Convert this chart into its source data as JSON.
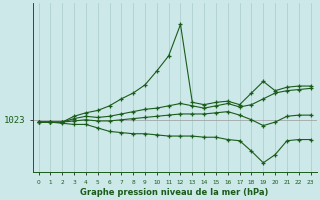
{
  "title": "Graphe pression niveau de la mer (hPa)",
  "background_color": "#cce8e8",
  "grid_color": "#b0d0d0",
  "line_color": "#1a5c1a",
  "ylabel_value": 1023,
  "xlim": [
    -0.5,
    23.5
  ],
  "ylim": [
    1018.5,
    1033.0
  ],
  "x_ticks": [
    0,
    1,
    2,
    3,
    4,
    5,
    6,
    7,
    8,
    9,
    10,
    11,
    12,
    13,
    14,
    15,
    16,
    17,
    18,
    19,
    20,
    21,
    22,
    23
  ],
  "series": [
    [
      1022.8,
      1022.8,
      1022.8,
      1023.3,
      1023.6,
      1023.8,
      1024.2,
      1024.8,
      1025.3,
      1026.0,
      1027.2,
      1028.5,
      1031.2,
      1024.5,
      1024.3,
      1024.5,
      1024.6,
      1024.3,
      1025.3,
      1026.3,
      1025.5,
      1025.8,
      1025.9,
      1025.9
    ],
    [
      1022.8,
      1022.8,
      1022.8,
      1023.1,
      1023.3,
      1023.2,
      1023.3,
      1023.5,
      1023.7,
      1023.9,
      1024.0,
      1024.2,
      1024.4,
      1024.2,
      1024.0,
      1024.2,
      1024.4,
      1024.1,
      1024.3,
      1024.8,
      1025.3,
      1025.5,
      1025.6,
      1025.7
    ],
    [
      1022.8,
      1022.8,
      1022.8,
      1022.9,
      1023.0,
      1022.9,
      1022.9,
      1023.0,
      1023.1,
      1023.2,
      1023.3,
      1023.4,
      1023.5,
      1023.5,
      1023.5,
      1023.6,
      1023.7,
      1023.4,
      1023.0,
      1022.5,
      1022.8,
      1023.3,
      1023.4,
      1023.4
    ],
    [
      1022.8,
      1022.8,
      1022.7,
      1022.6,
      1022.6,
      1022.3,
      1022.0,
      1021.9,
      1021.8,
      1021.8,
      1021.7,
      1021.6,
      1021.6,
      1021.6,
      1021.5,
      1021.5,
      1021.3,
      1021.2,
      1020.3,
      1019.3,
      1020.0,
      1021.2,
      1021.3,
      1021.3
    ]
  ]
}
